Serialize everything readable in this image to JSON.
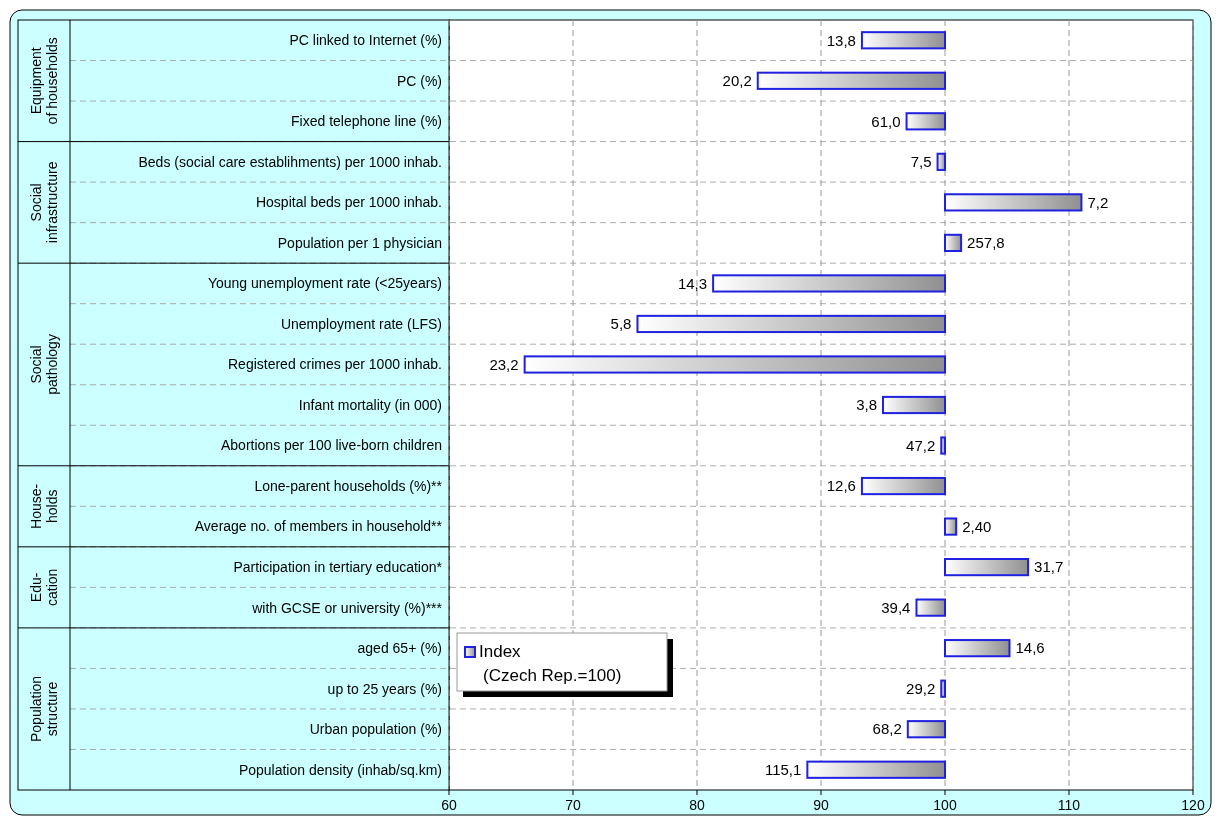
{
  "chart_data": {
    "type": "bar",
    "orientation": "horizontal",
    "categories": [
      "PC linked to Internet (%)",
      "PC (%)",
      "Fixed telephone line (%)",
      "Beds (social care establihments) per 1000 inhab.",
      "Hospital beds per 1000 inhab.",
      "Population per 1 physician",
      "Young unemployment rate (<25years)",
      "Unemployment rate (LFS)",
      "Registered crimes per 1000 inhab.",
      "Infant mortality (in 000)",
      "Abortions per 100 live-born children",
      "Lone-parent households  (%)**",
      "Average no. of members in household**",
      "Participation in tertiary education*",
      "with GCSE or university  (%)***",
      "aged 65+ (%)",
      "up to 25 years (%)",
      "Urban population (%)",
      "Population density (inhab/sq.km)"
    ],
    "series": [
      {
        "name": "Index\n(Czech Rep.=100)",
        "color": "#2020e0",
        "base": [
          100,
          100,
          100,
          100,
          100,
          100,
          100,
          100,
          100,
          100,
          100,
          100,
          100,
          100,
          100,
          100,
          100,
          100,
          100
        ],
        "values": [
          -6.7,
          -15.1,
          -3.1,
          -0.6,
          11.0,
          1.3,
          -18.7,
          -24.8,
          -33.9,
          -5.0,
          -0.3,
          -6.7,
          0.9,
          6.7,
          -2.3,
          5.2,
          -0.3,
          -3.0,
          -11.1
        ]
      }
    ],
    "xlim": [
      60,
      120
    ],
    "xticks": [
      60,
      70,
      80,
      90,
      100,
      110,
      120
    ],
    "grid": "x",
    "legend": "bottom left",
    "annotations": [
      "Equipment\nof households",
      "Social\ninfrastructure",
      "Social\npathology",
      "House-\nholds",
      "Edu-\ncation",
      "Population\nstructure",
      {
        "text": "13,8",
        "x": 93.3,
        "y": "PC linked to Internet (%)"
      },
      {
        "text": "20,2",
        "x": 84.9,
        "y": "PC (%)"
      },
      {
        "text": "61,0",
        "x": 96.9,
        "y": "Fixed telephone line (%)"
      },
      {
        "text": "7,5",
        "x": 99.4,
        "y": "Beds (social care establihments) per 1000 inhab."
      },
      {
        "text": "7,2",
        "x": 111.0,
        "y": "Hospital beds per 1000 inhab."
      },
      {
        "text": "257,8",
        "x": 101.3,
        "y": "Population per 1 physician"
      },
      {
        "text": "14,3",
        "x": 81.3,
        "y": "Young unemployment rate (<25years)"
      },
      {
        "text": "5,8",
        "x": 75.2,
        "y": "Unemployment rate (LFS)"
      },
      {
        "text": "23,2",
        "x": 66.1,
        "y": "Registered crimes per 1000 inhab."
      },
      {
        "text": "3,8",
        "x": 95.0,
        "y": "Infant mortality (in 000)"
      },
      {
        "text": "47,2",
        "x": 99.7,
        "y": "Abortions per 100 live-born children"
      },
      {
        "text": "12,6",
        "x": 93.3,
        "y": "Lone-parent households  (%)**"
      },
      {
        "text": "2,40",
        "x": 100.9,
        "y": "Average no. of members in household**"
      },
      {
        "text": "31,7",
        "x": 106.7,
        "y": "Participation in tertiary education*"
      },
      {
        "text": "39,4",
        "x": 97.7,
        "y": "with GCSE or university  (%)***"
      },
      {
        "text": "14,6",
        "x": 105.2,
        "y": "aged 65+ (%)"
      },
      {
        "text": "29,2",
        "x": 99.7,
        "y": "up to 25 years (%)"
      },
      {
        "text": "68,2",
        "x": 97.0,
        "y": "Urban population (%)"
      },
      {
        "text": "115,1",
        "x": 88.9,
        "y": "Population density (inhab/sq.km)"
      }
    ]
  }
}
